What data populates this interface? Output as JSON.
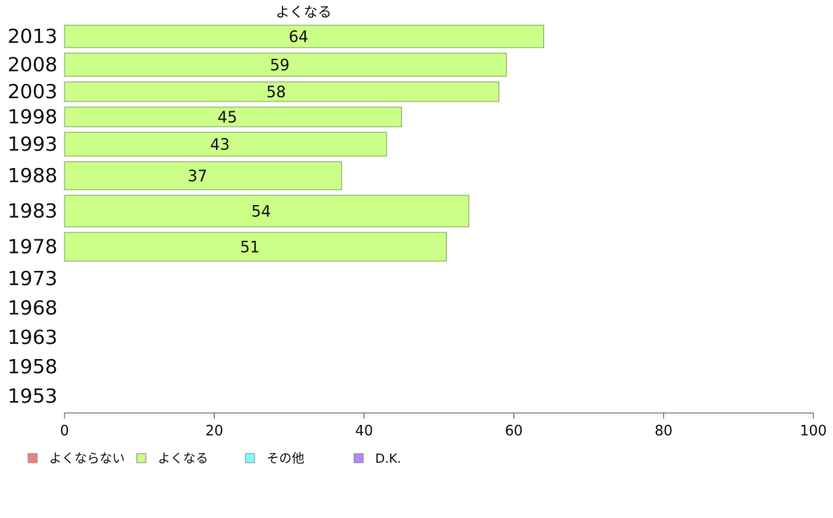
{
  "chart_data": {
    "type": "bar",
    "orientation": "horizontal",
    "title": "",
    "column_header": "よくなる",
    "categories": [
      "2013",
      "2008",
      "2003",
      "1998",
      "1993",
      "1988",
      "1983",
      "1978",
      "1973",
      "1968",
      "1963",
      "1958",
      "1953"
    ],
    "series": [
      {
        "name": "よくなる",
        "color": "#ccff88",
        "values": [
          64,
          59,
          58,
          45,
          43,
          37,
          54,
          51,
          null,
          null,
          null,
          null,
          null
        ],
        "labels": [
          "64",
          "59",
          "58",
          "45",
          "43",
          "37",
          "54",
          "51",
          "",
          "",
          "",
          "",
          ""
        ]
      }
    ],
    "xlim": [
      0,
      100
    ],
    "xticks": [
      "0",
      "20",
      "40",
      "60",
      "80",
      "100"
    ],
    "grid": false,
    "legend_position": "bottom-left",
    "legend": [
      {
        "label": "よくならない",
        "color": "#f08080"
      },
      {
        "label": "よくなる",
        "color": "#ccff88"
      },
      {
        "label": "その他",
        "color": "#80ffff"
      },
      {
        "label": "D.K.",
        "color": "#b388ff"
      }
    ]
  }
}
